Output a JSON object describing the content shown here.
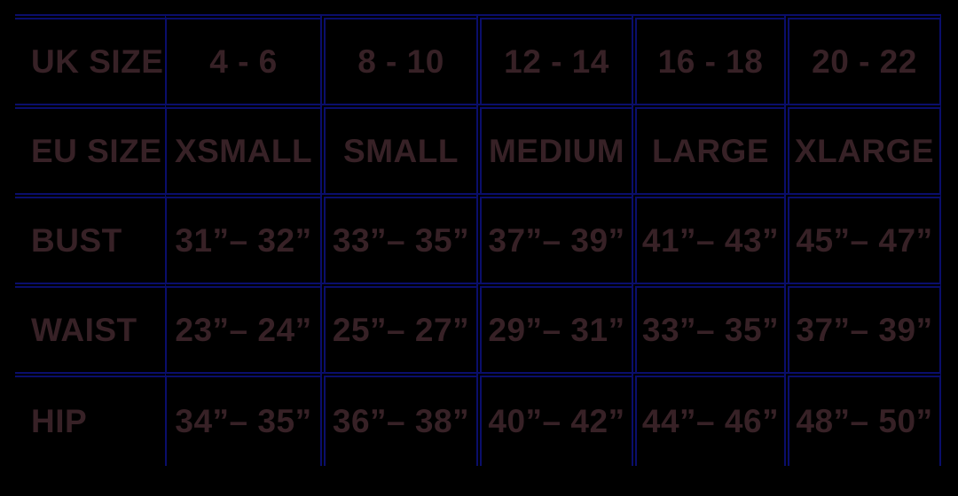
{
  "colors": {
    "background": "#000000",
    "grid_line": "#0a0e6b",
    "text": "#372126"
  },
  "chart_data": {
    "type": "table",
    "rows": [
      {
        "label": "UK SIZE",
        "values": [
          "4 - 6",
          "8 - 10",
          "12 - 14",
          "16 - 18",
          "20 - 22"
        ]
      },
      {
        "label": "EU SIZE",
        "values": [
          "XSMALL",
          "SMALL",
          "MEDIUM",
          "LARGE",
          "XLARGE"
        ]
      },
      {
        "label": "BUST",
        "values": [
          "31”– 32”",
          "33”– 35”",
          "37”– 39”",
          "41”– 43”",
          "45”– 47”"
        ]
      },
      {
        "label": "WAIST",
        "values": [
          "23”– 24”",
          "25”– 27”",
          "29”– 31”",
          "33”– 35”",
          "37”– 39”"
        ]
      },
      {
        "label": "HIP",
        "values": [
          "34”– 35”",
          "36”– 38”",
          "40”– 42”",
          "44”– 46”",
          "48”– 50”"
        ]
      }
    ],
    "layout": {
      "grid": "on",
      "header_column": "left",
      "outer_border": "top and right only"
    }
  }
}
